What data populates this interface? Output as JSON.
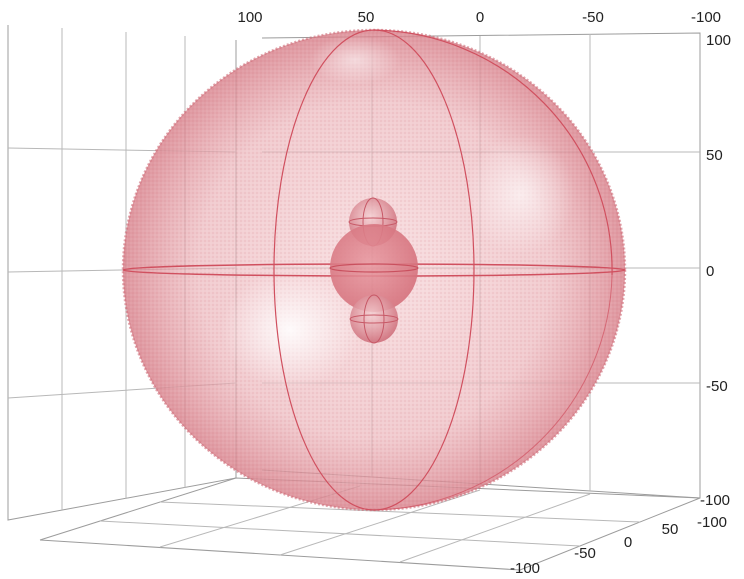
{
  "plot": {
    "top_axis_ticks": [
      "100",
      "50",
      "0",
      "-50",
      "-100"
    ],
    "right_axis_ticks": [
      "100",
      "50",
      "0",
      "-50",
      "-100"
    ],
    "floor_axis_a_ticks": [
      "-100",
      "-50",
      "0"
    ],
    "floor_axis_b_ticks": [
      "50",
      "-100"
    ]
  },
  "spheres": [
    {
      "role": "outer",
      "color": "#e06070"
    },
    {
      "role": "inner-top",
      "color": "#d85a6a"
    },
    {
      "role": "inner-center",
      "color": "#d85a6a"
    },
    {
      "role": "inner-bottom",
      "color": "#d85a6a"
    }
  ],
  "colors": {
    "sphere_fill": "#e9a4ab",
    "sphere_edge": "#d0505f",
    "grid": "#9c9c9c"
  }
}
